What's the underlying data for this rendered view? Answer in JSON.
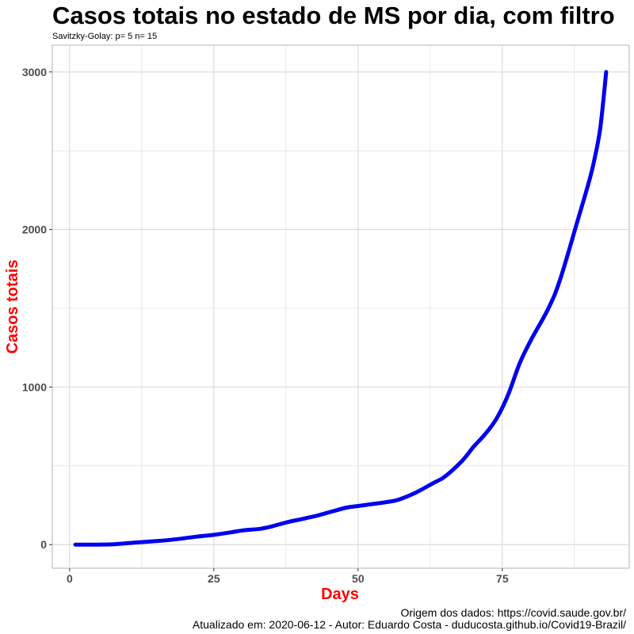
{
  "chart_data": {
    "type": "line",
    "title": "Casos totais no estado de MS por dia, com filtro",
    "subtitle": "Savitzky-Golay: p= 5 n= 15",
    "xlabel": "Days",
    "ylabel": "Casos totais",
    "xlim": [
      -3,
      97
    ],
    "ylim": [
      -150,
      3170
    ],
    "x_ticks": [
      0,
      25,
      50,
      75
    ],
    "y_ticks": [
      0,
      1000,
      2000,
      3000
    ],
    "grid": true,
    "legend": "none",
    "colors": {
      "line": "#0000ee",
      "axis_title": "#ff0000",
      "grid": "#d9d9d9",
      "panel_border": "#b3b3b3"
    },
    "series": [
      {
        "x": [
          1,
          5,
          8,
          12,
          15,
          18,
          22,
          25,
          28,
          30,
          33,
          35,
          38,
          40,
          43,
          45,
          48,
          50,
          53,
          55,
          57,
          60,
          63,
          65,
          68,
          70,
          72,
          74,
          76,
          78,
          80,
          83,
          85,
          88,
          90,
          91,
          92,
          93
        ],
        "y": [
          0,
          0,
          3,
          15,
          22,
          32,
          50,
          62,
          78,
          90,
          100,
          115,
          145,
          160,
          185,
          205,
          235,
          245,
          260,
          270,
          285,
          330,
          390,
          430,
          530,
          620,
          700,
          800,
          950,
          1150,
          1300,
          1500,
          1680,
          2050,
          2300,
          2450,
          2650,
          3000
        ]
      }
    ]
  },
  "captions": {
    "source": "Origem dos dados: https://covid.saude.gov.br/",
    "author": "Atualizado em: 2020-06-12    -  Autor: Eduardo Costa - duducosta.github.io/Covid19-Brazil/"
  }
}
